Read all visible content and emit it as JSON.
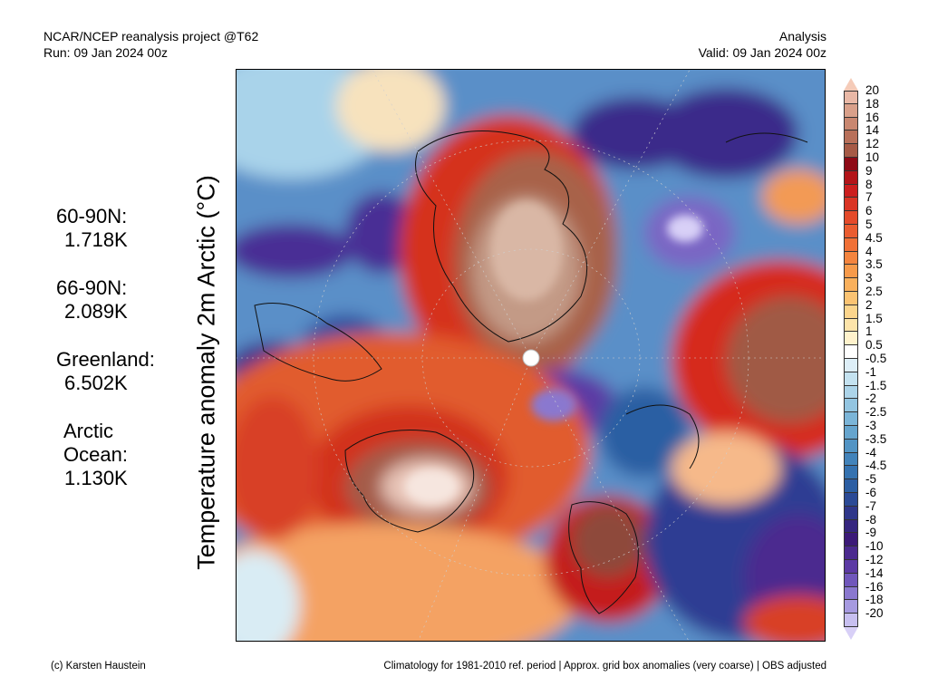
{
  "header": {
    "left_line1": "NCAR/NCEP reanalysis project @T62",
    "left_line2": "Run: 09 Jan 2024 00z",
    "right_line1": "Analysis",
    "right_line2": "Valid: 09 Jan 2024 00z"
  },
  "stats": [
    {
      "region": "60-90N:",
      "value": "1.718K"
    },
    {
      "region": "66-90N:",
      "value": "2.089K"
    },
    {
      "region": "Greenland:",
      "value": "6.502K"
    },
    {
      "region": "Arctic Ocean:",
      "value": "1.130K"
    }
  ],
  "ylabel": "Temperature anomaly 2m Arctic (°C)",
  "colorbar": {
    "levels": [
      "20",
      "18",
      "16",
      "14",
      "12",
      "10",
      "9",
      "8",
      "7",
      "6",
      "5",
      "4.5",
      "4",
      "3.5",
      "3",
      "2.5",
      "2",
      "1.5",
      "1",
      "0.5",
      "-0.5",
      "-1",
      "-1.5",
      "-2",
      "-2.5",
      "-3",
      "-3.5",
      "-4",
      "-4.5",
      "-5",
      "-6",
      "-7",
      "-8",
      "-9",
      "-10",
      "-12",
      "-14",
      "-16",
      "-18",
      "-20"
    ],
    "colors": [
      "#e9b8a6",
      "#d9a08a",
      "#c98770",
      "#b8705a",
      "#a65a46",
      "#8e0a16",
      "#b31419",
      "#cc1e1e",
      "#da3424",
      "#e44a2a",
      "#ea5c30",
      "#f07036",
      "#f4843e",
      "#f79a4a",
      "#f9b05c",
      "#fbc372",
      "#fcd58c",
      "#fde4aa",
      "#fff2cc",
      "#ffffff",
      "#ddeef7",
      "#c4e2f0",
      "#acd4e9",
      "#93c5e1",
      "#7bb5d8",
      "#66a5ce",
      "#5294c4",
      "#4283ba",
      "#3572b0",
      "#2c5ea3",
      "#2b4a96",
      "#2f378a",
      "#35267f",
      "#3c1a78",
      "#4b2a8f",
      "#5c3aa4",
      "#7057bb",
      "#8a78cf",
      "#a69ae0",
      "#c7bff0"
    ],
    "top_tip": "#f5cbb8",
    "bottom_tip": "#d8d0f7"
  },
  "footer": {
    "left": "(c) Karsten Haustein",
    "right": "Climatology for 1981-2010 ref. period | Approx. grid box anomalies (very coarse) | OBS adjusted"
  }
}
